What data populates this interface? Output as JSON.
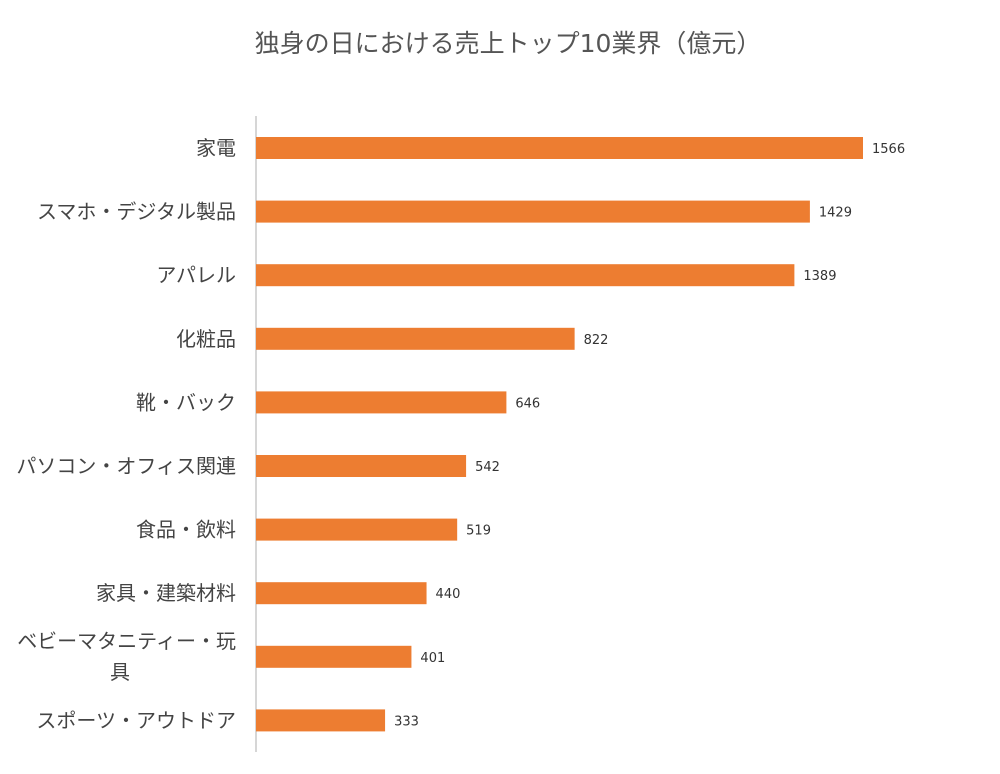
{
  "chart_data": {
    "type": "bar",
    "orientation": "horizontal",
    "title": "独身の日における売上トップ10業界（億元）",
    "xlabel": "",
    "ylabel": "",
    "categories": [
      "家電",
      "スマホ・デジタル製品",
      "アパレル",
      "化粧品",
      "靴・バック",
      "パソコン・オフィス関連",
      "食品・飲料",
      "家具・建築材料",
      "ベビーマタニティー・玩具",
      "スポーツ・アウトドア"
    ],
    "values": [
      1566,
      1429,
      1389,
      822,
      646,
      542,
      519,
      440,
      401,
      333
    ],
    "xlim": [
      0,
      1566
    ],
    "grid": false,
    "legend": "none",
    "bar_color": "#ED7D31",
    "axis_color": "#C8C8C8"
  }
}
